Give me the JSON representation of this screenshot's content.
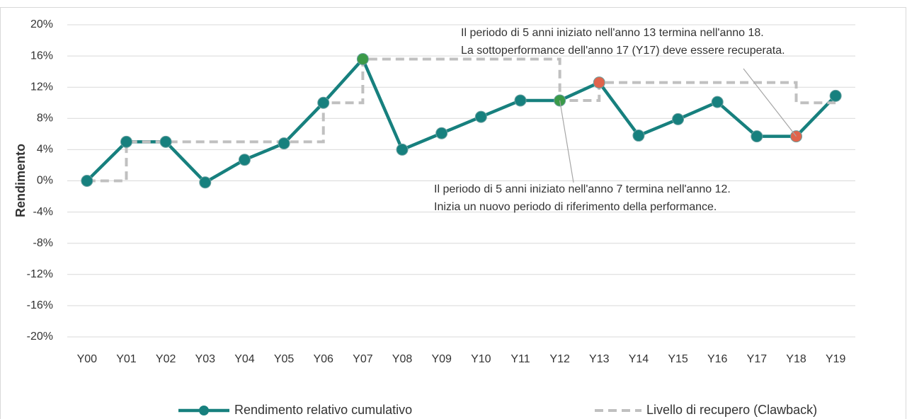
{
  "chart_data": {
    "type": "line",
    "y_label": "Rendimento",
    "categories": [
      "Y00",
      "Y01",
      "Y02",
      "Y03",
      "Y04",
      "Y05",
      "Y06",
      "Y07",
      "Y08",
      "Y09",
      "Y10",
      "Y11",
      "Y12",
      "Y13",
      "Y14",
      "Y15",
      "Y16",
      "Y17",
      "Y18",
      "Y19"
    ],
    "ylim": [
      -20,
      20
    ],
    "yticks": [
      {
        "value": -20,
        "label": "-20%"
      },
      {
        "value": -16,
        "label": "-16%"
      },
      {
        "value": -12,
        "label": "-12%"
      },
      {
        "value": -8,
        "label": "-8%"
      },
      {
        "value": -4,
        "label": "-4%"
      },
      {
        "value": 0,
        "label": "0%"
      },
      {
        "value": 4,
        "label": "4%"
      },
      {
        "value": 8,
        "label": "8%"
      },
      {
        "value": 12,
        "label": "12%"
      },
      {
        "value": 16,
        "label": "16%"
      },
      {
        "value": 20,
        "label": "20%"
      }
    ],
    "grid": true,
    "series": [
      {
        "name": "Rendimento relativo cumulativo",
        "color": "#17807e",
        "style": "solid-markers",
        "marker_colors": [
          "#17807e",
          "#17807e",
          "#17807e",
          "#17807e",
          "#17807e",
          "#17807e",
          "#17807e",
          "#3b9a48",
          "#17807e",
          "#17807e",
          "#17807e",
          "#17807e",
          "#3b9a48",
          "#e0644c",
          "#17807e",
          "#17807e",
          "#17807e",
          "#17807e",
          "#e0644c",
          "#17807e"
        ],
        "values": [
          0,
          5,
          5,
          -0.2,
          2.7,
          4.8,
          10,
          15.6,
          4,
          6.1,
          8.2,
          10.3,
          10.3,
          12.6,
          5.8,
          7.9,
          10.1,
          5.7,
          5.7,
          10.9
        ]
      },
      {
        "name": "Livello di recupero (Clawback)",
        "color": "#c0c0c0",
        "style": "dashed-step",
        "values": [
          0,
          5,
          5,
          5,
          5,
          5,
          10,
          15.6,
          15.6,
          15.6,
          15.6,
          15.6,
          10.3,
          12.6,
          12.6,
          12.6,
          12.6,
          12.6,
          10,
          10
        ]
      }
    ],
    "annotations": [
      {
        "lines": [
          "Il periodo di 5 anni iniziato nell'anno 13 termina nell'anno 18.",
          "La sottoperformance dell'anno 17 (Y17) deve essere recuperata."
        ],
        "target": 18
      },
      {
        "lines": [
          "Il periodo di 5 anni iniziato nell'anno 7 termina nell'anno 12.",
          "Inizia un nuovo periodo di riferimento della performance."
        ],
        "target": 12
      }
    ]
  }
}
